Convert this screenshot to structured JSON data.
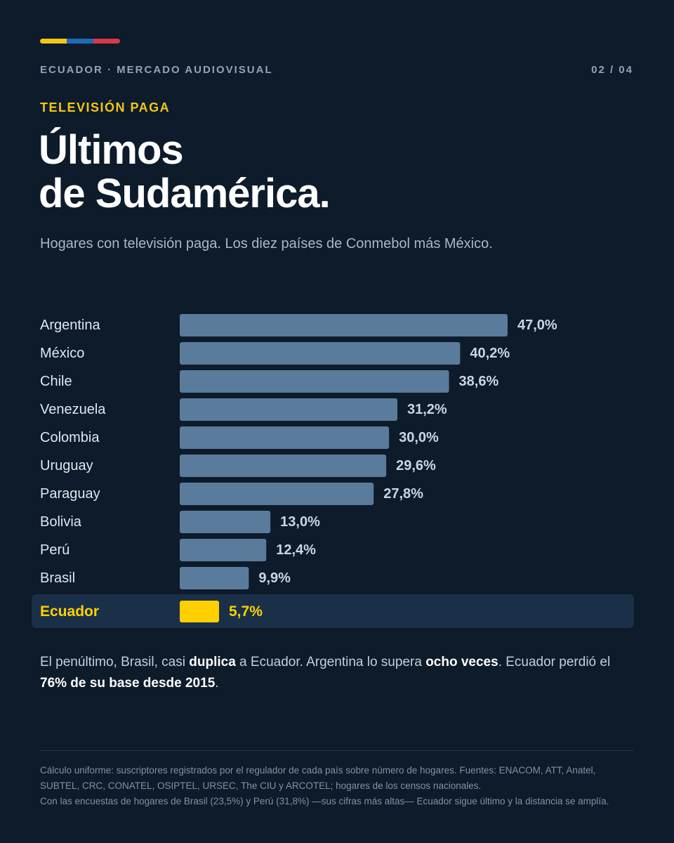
{
  "header": {
    "flag_colors": [
      "#f5c518",
      "#1e6bb8",
      "#d8384a"
    ],
    "kicker": "ECUADOR · MERCADO AUDIOVISUAL",
    "pager": "02 / 04",
    "section": "TELEVISIÓN PAGA",
    "title_line1": "Últimos",
    "title_line2": "de Sudamérica.",
    "subtitle": "Hogares con televisión paga. Los diez países de Conmebol más México."
  },
  "colors": {
    "background": "#0d1b2a",
    "bar": "#5a7b9b",
    "highlight_bar": "#ffd000",
    "highlight_row": "#1a3048",
    "label": "#dfe7ef",
    "value": "#c9d6e3"
  },
  "chart_data": {
    "type": "bar",
    "orientation": "horizontal",
    "categories": [
      "Argentina",
      "México",
      "Chile",
      "Venezuela",
      "Colombia",
      "Uruguay",
      "Paraguay",
      "Bolivia",
      "Perú",
      "Brasil",
      "Ecuador"
    ],
    "values": [
      47.0,
      40.2,
      38.6,
      31.2,
      30.0,
      29.6,
      27.8,
      13.0,
      12.4,
      9.9,
      5.7
    ],
    "value_labels": [
      "47,0%",
      "40,2%",
      "38,6%",
      "31,2%",
      "30,0%",
      "29,6%",
      "27,8%",
      "13,0%",
      "12,4%",
      "9,9%",
      "5,7%"
    ],
    "highlight": "Ecuador",
    "unit": "%",
    "xlim": [
      0,
      47.0
    ],
    "grid": false,
    "legend": "none"
  },
  "note": {
    "p1": "El penúltimo, Brasil, casi ",
    "b1": "duplica",
    "p2": " a Ecuador. Argentina lo supera ",
    "b2": "ocho veces",
    "p3": ". Ecuador perdió el ",
    "b3": "76% de su base desde 2015",
    "p4": "."
  },
  "footer": {
    "line1": "Cálculo uniforme: suscriptores registrados por el regulador de cada país sobre número de hogares. Fuentes: ENACOM, ATT, Anatel,",
    "line2": "SUBTEL, CRC, CONATEL, OSIPTEL, URSEC, The CIU y ARCOTEL; hogares de los censos nacionales.",
    "line3": "Con las encuestas de hogares de Brasil (23,5%) y Perú (31,8%) —sus cifras más altas— Ecuador sigue último y la distancia se amplía."
  }
}
